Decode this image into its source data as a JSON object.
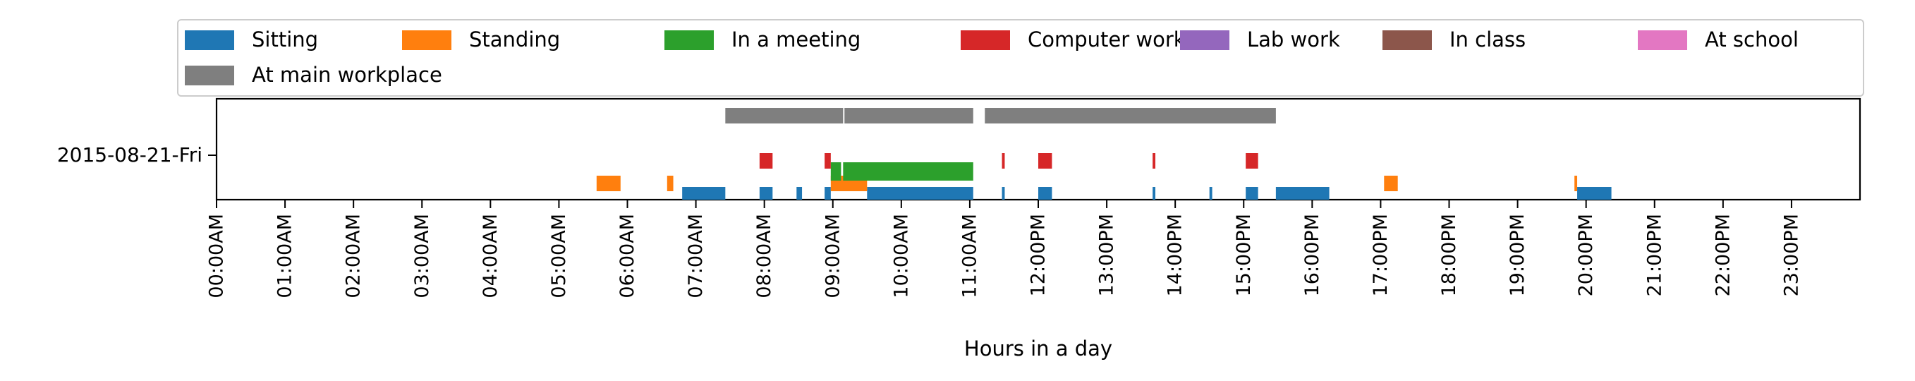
{
  "chart_data": {
    "type": "timeline",
    "title": "",
    "xlabel": "Hours in a day",
    "ylabel": "",
    "xlim": [
      0,
      24
    ],
    "day_label": "2015-08-21-Fri",
    "tick_labels": [
      "00:00AM",
      "01:00AM",
      "02:00AM",
      "03:00AM",
      "04:00AM",
      "05:00AM",
      "06:00AM",
      "07:00AM",
      "08:00AM",
      "09:00AM",
      "10:00AM",
      "11:00AM",
      "12:00PM",
      "13:00PM",
      "14:00PM",
      "15:00PM",
      "16:00PM",
      "17:00PM",
      "18:00PM",
      "19:00PM",
      "20:00PM",
      "21:00PM",
      "22:00PM",
      "23:00PM"
    ],
    "legend_position": "top",
    "series": [
      {
        "name": "Sitting",
        "color": "#1f77b4",
        "row": 0,
        "intervals": [
          [
            6.8,
            7.43
          ],
          [
            7.93,
            8.12
          ],
          [
            8.47,
            8.55
          ],
          [
            8.88,
            8.97
          ],
          [
            9.5,
            11.05
          ],
          [
            11.47,
            11.51
          ],
          [
            12.0,
            12.2
          ],
          [
            13.67,
            13.71
          ],
          [
            14.5,
            14.54
          ],
          [
            15.03,
            15.21
          ],
          [
            15.47,
            16.25
          ],
          [
            19.87,
            20.37
          ]
        ]
      },
      {
        "name": "Standing",
        "color": "#ff7f0e",
        "row": 1,
        "intervals": [
          [
            5.55,
            5.9
          ],
          [
            6.58,
            6.67
          ],
          [
            8.97,
            9.5
          ],
          [
            17.05,
            17.25
          ],
          [
            19.83,
            19.87
          ]
        ]
      },
      {
        "name": "In a meeting",
        "color": "#2ca02c",
        "row": 2,
        "intervals": [
          [
            8.97,
            9.12
          ],
          [
            9.15,
            11.05
          ]
        ]
      },
      {
        "name": "Computer work",
        "color": "#d62728",
        "row": 3,
        "intervals": [
          [
            7.93,
            8.12
          ],
          [
            8.88,
            8.97
          ],
          [
            11.47,
            11.51
          ],
          [
            12.0,
            12.2
          ],
          [
            13.67,
            13.71
          ],
          [
            15.03,
            15.21
          ]
        ]
      },
      {
        "name": "Lab work",
        "color": "#9467bd",
        "row": 4,
        "intervals": []
      },
      {
        "name": "In class",
        "color": "#8c564b",
        "row": 5,
        "intervals": []
      },
      {
        "name": "At school",
        "color": "#e377c2",
        "row": 6,
        "intervals": []
      },
      {
        "name": "At main workplace",
        "color": "#7f7f7f",
        "row": 7,
        "intervals": [
          [
            7.43,
            9.15
          ],
          [
            9.17,
            11.05
          ],
          [
            11.22,
            15.47
          ]
        ]
      }
    ]
  }
}
